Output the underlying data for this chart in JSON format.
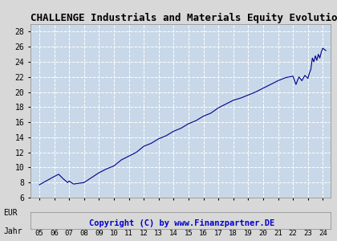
{
  "title": "CHALLENGE Industrials and Materials Equity Evolution S A",
  "xlabel_left": "EUR",
  "xlabel_right": "Jahr",
  "copyright": "Copyright (C) by www.Finanzpartner.DE",
  "x_ticks": [
    "05",
    "06",
    "07",
    "08",
    "09",
    "10",
    "11",
    "12",
    "13",
    "14",
    "15",
    "16",
    "17",
    "18",
    "19",
    "20",
    "21",
    "22",
    "23",
    "24"
  ],
  "y_ticks": [
    6,
    8,
    10,
    12,
    14,
    16,
    18,
    20,
    22,
    24,
    26,
    28
  ],
  "ylim": [
    6,
    29
  ],
  "line_color": "#00008b",
  "background_color": "#d8d8d8",
  "plot_bg_color": "#c8d8e8",
  "grid_color": "#ffffff",
  "title_fontsize": 9,
  "copyright_color": "#0000cc",
  "x_years": [
    2005,
    2006,
    2006.3,
    2006.6,
    2006.9,
    2007,
    2007.3,
    2008,
    2009,
    2009.5,
    2010,
    2010.5,
    2011,
    2011.5,
    2012,
    2012.5,
    2013,
    2013.5,
    2014,
    2014.5,
    2015,
    2015.5,
    2016,
    2016.5,
    2017,
    2017.5,
    2018,
    2018.5,
    2019,
    2019.5,
    2020,
    2020.5,
    2021,
    2021.5,
    2022,
    2022.2,
    2022.4,
    2022.6,
    2022.8,
    2023,
    2023.1,
    2023.2,
    2023.3,
    2023.4,
    2023.5,
    2023.6,
    2023.7,
    2023.8,
    2023.9,
    2024,
    2024.2
  ],
  "y_values": [
    7.7,
    8.8,
    9.1,
    8.5,
    8.0,
    8.2,
    7.8,
    8.0,
    9.3,
    9.8,
    10.2,
    11.0,
    11.5,
    12.0,
    12.8,
    13.2,
    13.8,
    14.2,
    14.8,
    15.2,
    15.8,
    16.2,
    16.8,
    17.2,
    17.9,
    18.4,
    18.9,
    19.2,
    19.6,
    20.0,
    20.5,
    21.0,
    21.5,
    21.9,
    22.1,
    21.0,
    22.0,
    21.5,
    22.2,
    21.8,
    22.5,
    23.0,
    24.5,
    24.0,
    24.8,
    24.2,
    25.0,
    24.5,
    25.3,
    25.8,
    25.5
  ]
}
